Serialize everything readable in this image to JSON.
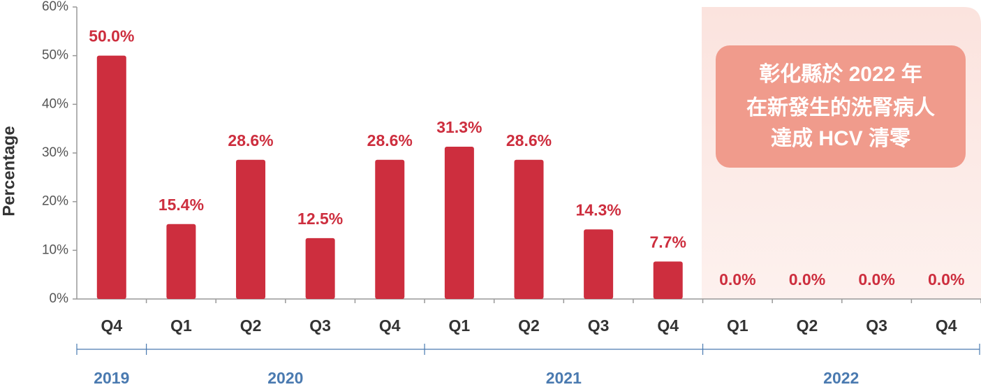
{
  "chart_data": {
    "type": "bar",
    "y_label": "Percentage",
    "color": "#cd2e3e",
    "ylim": [
      0,
      60
    ],
    "yticks": [
      {
        "value": 0,
        "label": "0%"
      },
      {
        "value": 10,
        "label": "10%"
      },
      {
        "value": 20,
        "label": "20%"
      },
      {
        "value": 30,
        "label": "30%"
      },
      {
        "value": 40,
        "label": "40%"
      },
      {
        "value": 50,
        "label": "50%"
      },
      {
        "value": 60,
        "label": "60%"
      }
    ],
    "groups": [
      {
        "name": "2019",
        "categories": [
          "Q4"
        ],
        "values": [
          50.0
        ],
        "value_labels": [
          "50.0%"
        ]
      },
      {
        "name": "2020",
        "categories": [
          "Q1",
          "Q2",
          "Q3",
          "Q4"
        ],
        "values": [
          15.4,
          28.6,
          12.5,
          28.6
        ],
        "value_labels": [
          "15.4%",
          "28.6%",
          "12.5%",
          "28.6%"
        ]
      },
      {
        "name": "2021",
        "categories": [
          "Q1",
          "Q2",
          "Q3",
          "Q4"
        ],
        "values": [
          31.3,
          28.6,
          14.3,
          7.7
        ],
        "value_labels": [
          "31.3%",
          "28.6%",
          "14.3%",
          "7.7%"
        ]
      },
      {
        "name": "2022",
        "categories": [
          "Q1",
          "Q2",
          "Q3",
          "Q4"
        ],
        "values": [
          0.0,
          0.0,
          0.0,
          0.0
        ],
        "value_labels": [
          "0.0%",
          "0.0%",
          "0.0%",
          "0.0%"
        ]
      }
    ],
    "annotation": [
      "彰化縣於 2022 年",
      "在新發生的洗腎病人",
      "達成 HCV 清零"
    ]
  }
}
